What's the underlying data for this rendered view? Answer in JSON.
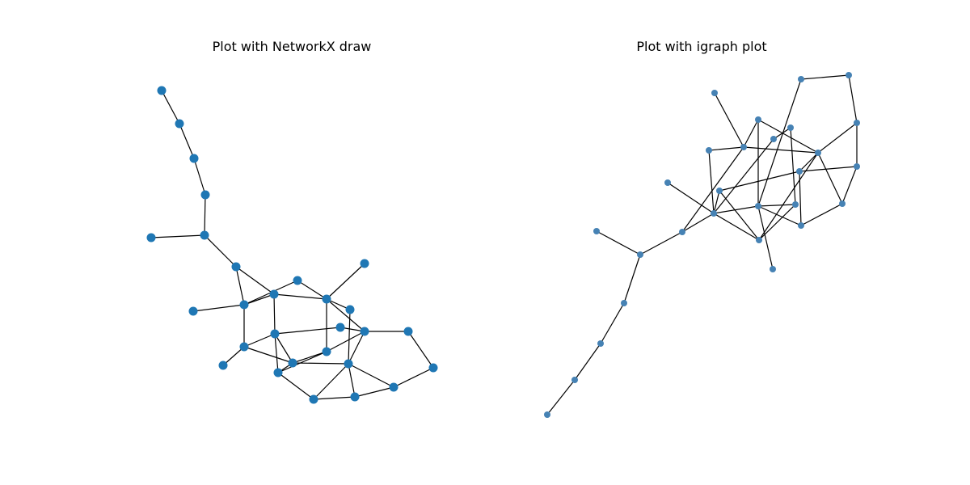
{
  "panels": [
    {
      "title": "Plot with NetworkX draw",
      "node_color": "#1f77b4",
      "edge_color": "#000000"
    },
    {
      "title": "Plot with igraph plot",
      "node_color": "#4682b4",
      "edge_color": "#000000"
    }
  ]
}
